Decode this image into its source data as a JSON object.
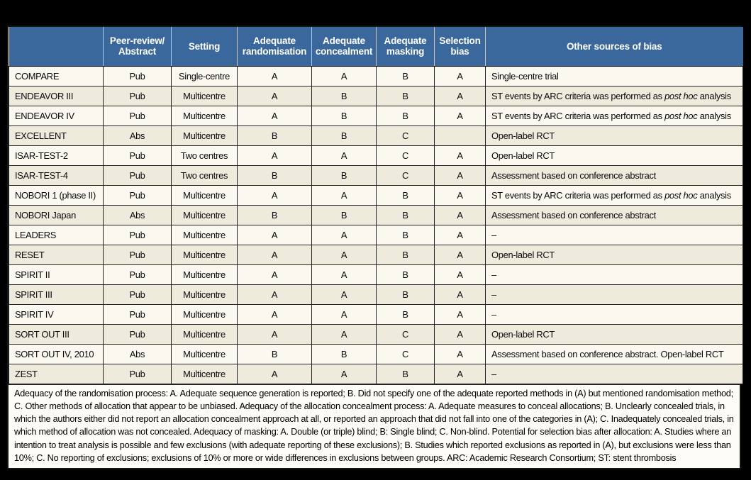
{
  "table": {
    "title_semantic": "Risk of bias assessment of included trials",
    "headers": [
      "",
      "Peer-review/\nAbstract",
      "Setting",
      "Adequate\nrandomisation",
      "Adequate\nconcealment",
      "Adequate\nmasking",
      "Selection\nbias",
      "Other sources of bias"
    ],
    "rows": [
      {
        "study": "COMPARE",
        "peer": "Pub",
        "setting": "Single-centre",
        "rand": "A",
        "conceal": "A",
        "mask": "B",
        "selection": "A",
        "other": "Single-centre trial"
      },
      {
        "study": "ENDEAVOR III",
        "peer": "Pub",
        "setting": "Multicentre",
        "rand": "A",
        "conceal": "B",
        "mask": "B",
        "selection": "A",
        "other": "ST events by ARC criteria was performed as *post hoc* analysis"
      },
      {
        "study": "ENDEAVOR IV",
        "peer": "Pub",
        "setting": "Multicentre",
        "rand": "A",
        "conceal": "B",
        "mask": "B",
        "selection": "A",
        "other": "ST events by ARC criteria was performed as *post hoc* analysis"
      },
      {
        "study": "EXCELLENT",
        "peer": "Abs",
        "setting": "Multicentre",
        "rand": "B",
        "conceal": "B",
        "mask": "C",
        "selection": "",
        "other": "Open-label RCT"
      },
      {
        "study": "ISAR-TEST-2",
        "peer": "Pub",
        "setting": "Two centres",
        "rand": "A",
        "conceal": "A",
        "mask": "C",
        "selection": "A",
        "other": "Open-label RCT"
      },
      {
        "study": "ISAR-TEST-4",
        "peer": "Pub",
        "setting": "Two centres",
        "rand": "B",
        "conceal": "B",
        "mask": "C",
        "selection": "A",
        "other": "Assessment based on conference abstract"
      },
      {
        "study": "NOBORI 1 (phase II)",
        "peer": "Pub",
        "setting": "Multicentre",
        "rand": "A",
        "conceal": "A",
        "mask": "B",
        "selection": "A",
        "other": "ST events by ARC criteria was performed as *post hoc* analysis"
      },
      {
        "study": "NOBORI Japan",
        "peer": "Abs",
        "setting": "Multicentre",
        "rand": "B",
        "conceal": "B",
        "mask": "B",
        "selection": "A",
        "other": "Assessment based on conference abstract"
      },
      {
        "study": "LEADERS",
        "peer": "Pub",
        "setting": "Multicentre",
        "rand": "A",
        "conceal": "A",
        "mask": "B",
        "selection": "A",
        "other": "–"
      },
      {
        "study": "RESET",
        "peer": "Pub",
        "setting": "Multicentre",
        "rand": "A",
        "conceal": "A",
        "mask": "B",
        "selection": "A",
        "other": "Open-label RCT"
      },
      {
        "study": "SPIRIT II",
        "peer": "Pub",
        "setting": "Multicentre",
        "rand": "A",
        "conceal": "A",
        "mask": "B",
        "selection": "A",
        "other": "–"
      },
      {
        "study": "SPIRIT III",
        "peer": "Pub",
        "setting": "Multicentre",
        "rand": "A",
        "conceal": "A",
        "mask": "B",
        "selection": "A",
        "other": "–"
      },
      {
        "study": "SPIRIT IV",
        "peer": "Pub",
        "setting": "Multicentre",
        "rand": "A",
        "conceal": "A",
        "mask": "B",
        "selection": "A",
        "other": "–"
      },
      {
        "study": "SORT OUT III",
        "peer": "Pub",
        "setting": "Multicentre",
        "rand": "A",
        "conceal": "A",
        "mask": "C",
        "selection": "A",
        "other": "Open-label RCT"
      },
      {
        "study": "SORT OUT IV, 2010",
        "peer": "Abs",
        "setting": "Multicentre",
        "rand": "B",
        "conceal": "B",
        "mask": "C",
        "selection": "A",
        "other": "Assessment based on conference abstract. Open-label RCT"
      },
      {
        "study": "ZEST",
        "peer": "Pub",
        "setting": "Multicentre",
        "rand": "A",
        "conceal": "A",
        "mask": "B",
        "selection": "A",
        "other": "–"
      }
    ],
    "footnote": "Adequacy of the randomisation process: A. Adequate sequence generation is reported; B. Did not specify one of the adequate reported methods in (A) but mentioned randomisation method; C. Other methods of allocation that appear to be unbiased. Adequacy of the allocation concealment process: A. Adequate measures to conceal allocations; B. Unclearly concealed trials, in which the authors either did not report an allocation concealment approach at all, or reported an approach that did not fall into one of the categories in (A); C. Inadequately concealed trials, in which method of allocation was not concealed. Adequacy of masking: A. Double (or triple) blind; B: Single blind; C. Non-blind.  Potential for selection bias after allocation: A. Studies where an intention to treat analysis is possible and few exclusions (with adequate reporting of these exclusions); B. Studies which reported exclusions as reported in (A), but exclusions were less than 10%; C. No reporting of exclusions; exclusions of 10% or more or wide differences in exclusions between groups.  ARC: Academic Research Consortium; ST: stent thrombosis"
  },
  "colors": {
    "page_bg": "#000000",
    "header_bg": "#3a689d",
    "header_text": "#ffffff",
    "row_light": "#fbf8f0",
    "row_dark": "#eeebdc",
    "footnote_bg": "#fdfcf6",
    "cell_border": "#232323"
  }
}
